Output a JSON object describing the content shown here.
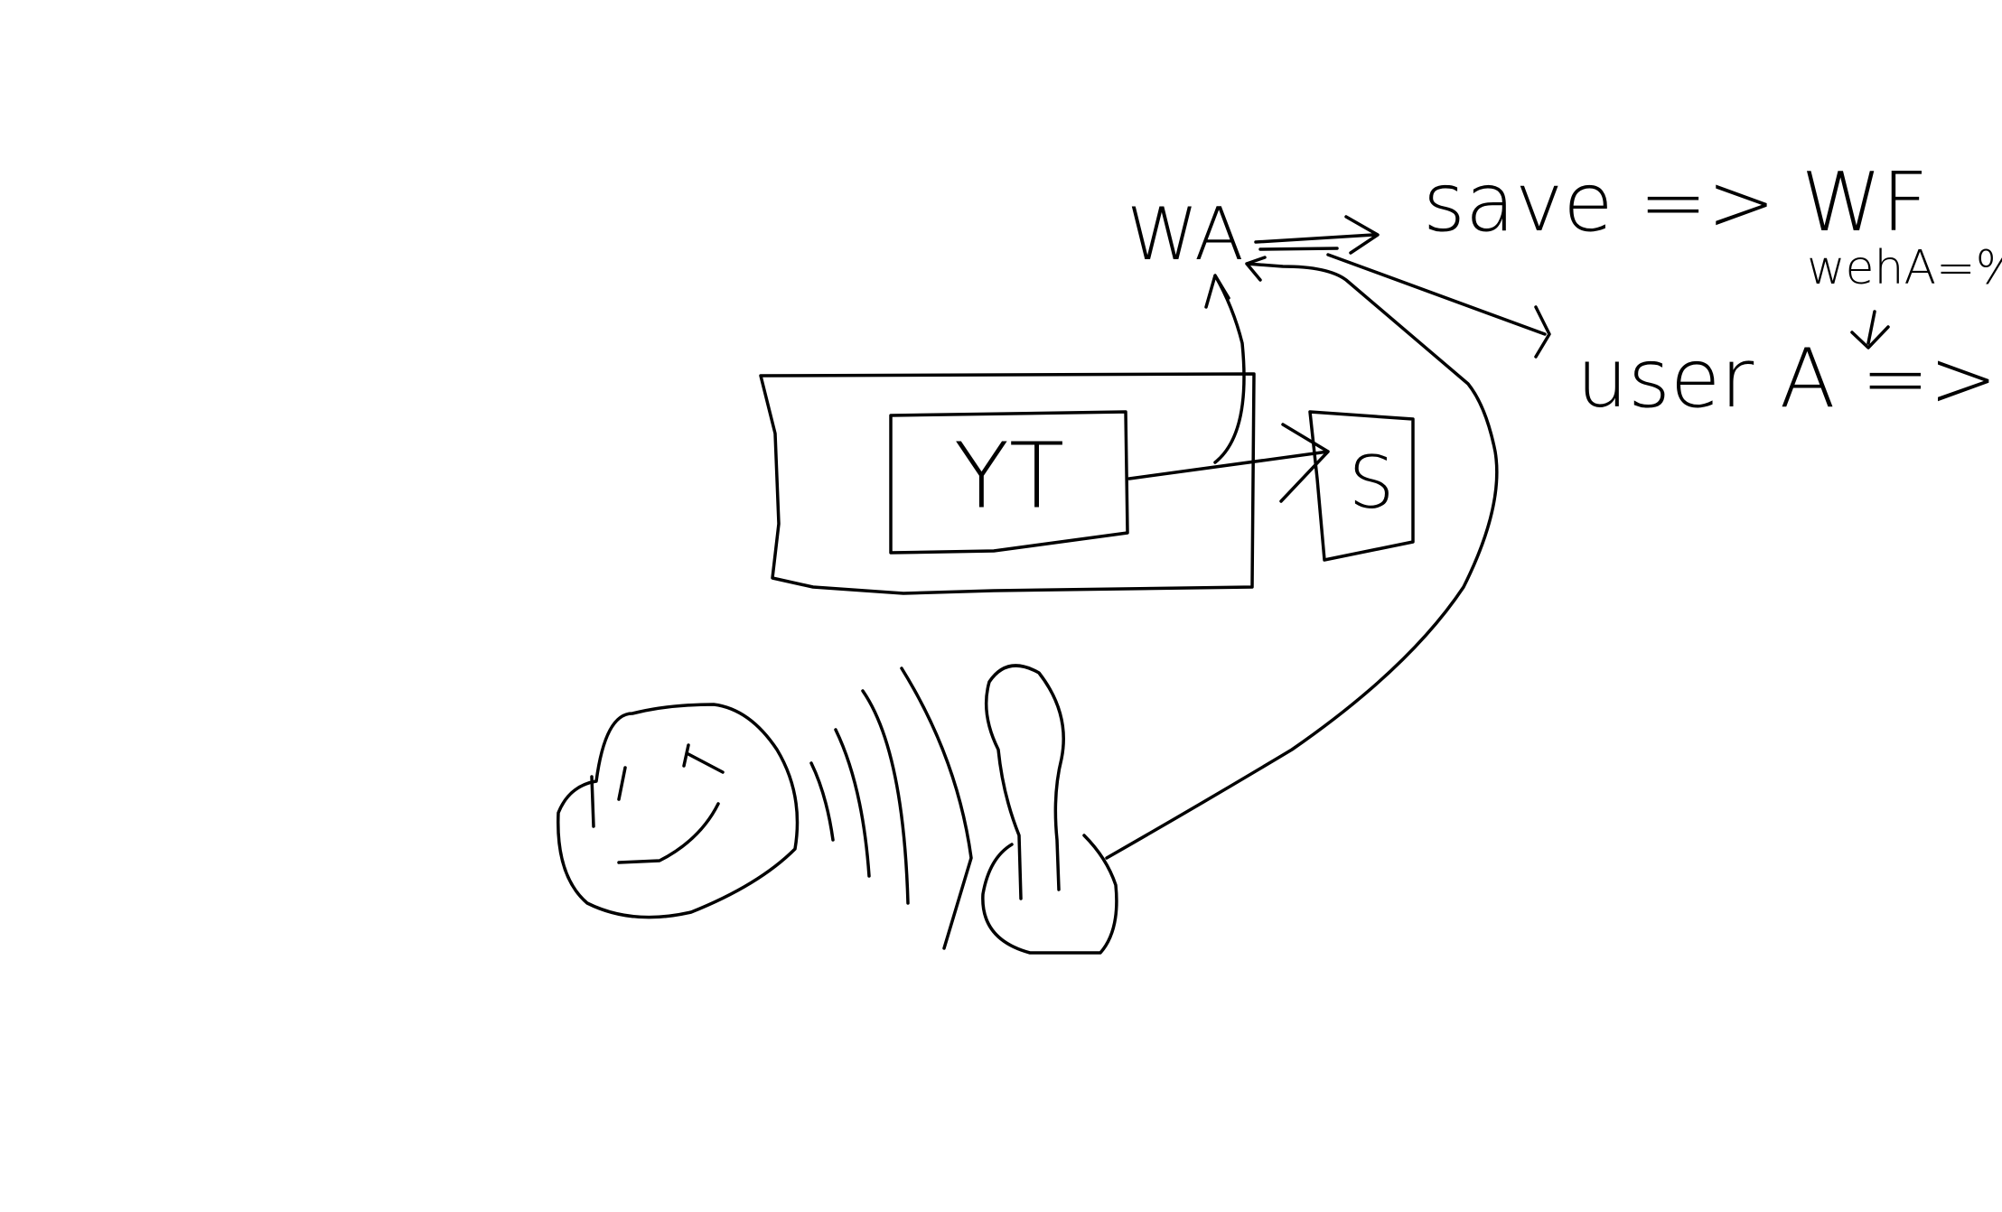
{
  "nodes": [
    {
      "label": "YT"
    },
    {
      "label": "S"
    },
    {
      "label": "WA"
    }
  ],
  "notes": [
    "save => WF",
    "wehA=%",
    "user A => WF"
  ]
}
